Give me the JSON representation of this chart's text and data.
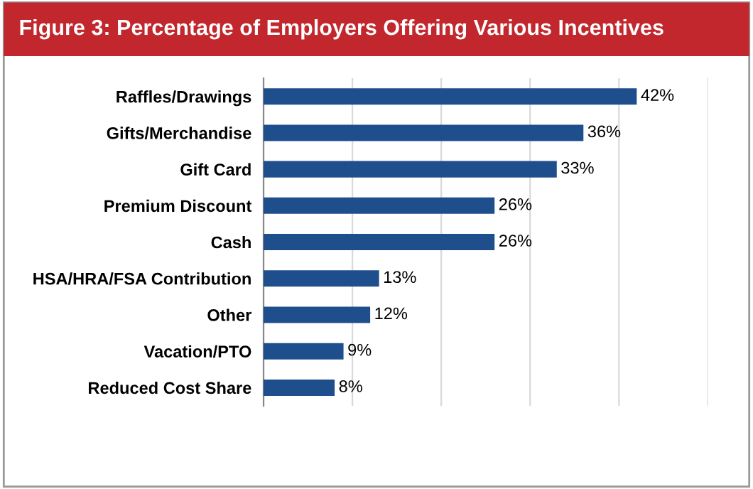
{
  "chart_data": {
    "type": "bar",
    "orientation": "horizontal",
    "title": "Figure 3: Percentage of Employers Offering Various Incentives",
    "categories": [
      "Raffles/Drawings",
      "Gifts/Merchandise",
      "Gift Card",
      "Premium Discount",
      "Cash",
      "HSA/HRA/FSA Contribution",
      "Other",
      "Vacation/PTO",
      "Reduced Cost Share"
    ],
    "values": [
      42,
      36,
      33,
      26,
      26,
      13,
      12,
      9,
      8
    ],
    "value_labels": [
      "42%",
      "36%",
      "33%",
      "26%",
      "26%",
      "13%",
      "12%",
      "9%",
      "8%"
    ],
    "color": "#1f4e8c",
    "xlim": [
      0,
      50
    ],
    "xticks": [
      {
        "value": 0,
        "label": null
      },
      {
        "value": 10,
        "label": null
      },
      {
        "value": 20,
        "label": null
      },
      {
        "value": 30,
        "label": null
      },
      {
        "value": 40,
        "label": null
      },
      {
        "value": 50,
        "label": null
      }
    ],
    "grid": "x",
    "legend": false
  }
}
